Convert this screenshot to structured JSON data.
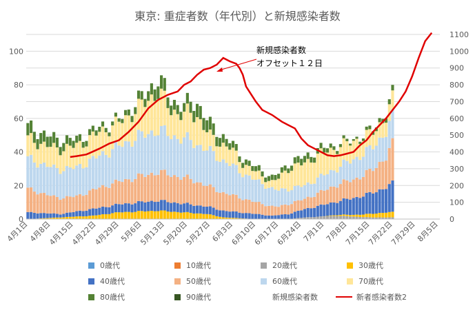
{
  "chart_data": {
    "type": "bar",
    "stacked": true,
    "title": "東京: 重症者数（年代別）と新規感染者数",
    "annotation": "新規感染者数\nオフセット１２日",
    "left_axis": {
      "ylim": [
        0,
        110
      ],
      "ticks": [
        0,
        20,
        40,
        60,
        80,
        100
      ]
    },
    "right_axis": {
      "ylim": [
        0,
        1100
      ],
      "ticks": [
        0,
        100,
        200,
        300,
        400,
        500,
        600,
        700,
        800,
        900,
        1000,
        1100
      ]
    },
    "x_tick_labels": [
      "4月1日",
      "4月8日",
      "4月15日",
      "4月22日",
      "4月29日",
      "5月6日",
      "5月13日",
      "5月20日",
      "5月27日",
      "6月3日",
      "6月10日",
      "6月17日",
      "6月24日",
      "7月1日",
      "7月8日",
      "7月15日",
      "7月22日",
      "7月29日",
      "8月5日"
    ],
    "x_days": 127,
    "bar_days": 113,
    "series": [
      {
        "name": "0歳代",
        "color": "#5b9bd5",
        "values": [
          [
            0,
            0
          ],
          [
            112,
            0
          ]
        ]
      },
      {
        "name": "10歳代",
        "color": "#ed7d31",
        "values": [
          [
            0,
            0
          ],
          [
            112,
            0
          ]
        ]
      },
      {
        "name": "20歳代",
        "color": "#a5a5a5",
        "values": [
          [
            0,
            0
          ],
          [
            80,
            0
          ],
          [
            85,
            1
          ],
          [
            95,
            2
          ],
          [
            105,
            1
          ],
          [
            112,
            1
          ]
        ]
      },
      {
        "name": "30歳代",
        "color": "#ffc000",
        "values": [
          [
            0,
            0
          ],
          [
            20,
            2
          ],
          [
            28,
            4
          ],
          [
            40,
            5
          ],
          [
            55,
            3
          ],
          [
            60,
            1
          ],
          [
            70,
            0
          ],
          [
            90,
            0
          ],
          [
            100,
            1
          ],
          [
            105,
            2
          ],
          [
            110,
            3
          ],
          [
            112,
            3
          ]
        ]
      },
      {
        "name": "40歳代",
        "color": "#4472c4",
        "values": [
          [
            0,
            4
          ],
          [
            10,
            2
          ],
          [
            20,
            4
          ],
          [
            30,
            5
          ],
          [
            40,
            6
          ],
          [
            50,
            5
          ],
          [
            60,
            4
          ],
          [
            70,
            3
          ],
          [
            75,
            2
          ],
          [
            80,
            3
          ],
          [
            88,
            6
          ],
          [
            95,
            8
          ],
          [
            100,
            10
          ],
          [
            105,
            12
          ],
          [
            110,
            15
          ],
          [
            112,
            17
          ]
        ]
      },
      {
        "name": "50歳代",
        "color": "#f4b183",
        "values": [
          [
            0,
            14
          ],
          [
            8,
            10
          ],
          [
            15,
            9
          ],
          [
            22,
            12
          ],
          [
            30,
            14
          ],
          [
            40,
            17
          ],
          [
            50,
            15
          ],
          [
            56,
            12
          ],
          [
            62,
            10
          ],
          [
            70,
            7
          ],
          [
            77,
            5
          ],
          [
            80,
            6
          ],
          [
            85,
            6
          ],
          [
            90,
            8
          ],
          [
            95,
            10
          ],
          [
            100,
            11
          ],
          [
            105,
            13
          ],
          [
            110,
            18
          ],
          [
            112,
            23
          ]
        ]
      },
      {
        "name": "60歳代",
        "color": "#bdd7ee",
        "values": [
          [
            0,
            18
          ],
          [
            8,
            17
          ],
          [
            15,
            17
          ],
          [
            22,
            19
          ],
          [
            28,
            21
          ],
          [
            34,
            24
          ],
          [
            40,
            25
          ],
          [
            46,
            23
          ],
          [
            50,
            23
          ],
          [
            56,
            21
          ],
          [
            62,
            18
          ],
          [
            66,
            15
          ],
          [
            70,
            13
          ],
          [
            76,
            10
          ],
          [
            80,
            9
          ],
          [
            85,
            8
          ],
          [
            90,
            9
          ],
          [
            95,
            10
          ],
          [
            100,
            12
          ],
          [
            105,
            13
          ],
          [
            110,
            15
          ],
          [
            112,
            16
          ]
        ]
      },
      {
        "name": "70歳代",
        "color": "#ffe699",
        "values": [
          [
            0,
            12
          ],
          [
            8,
            12
          ],
          [
            15,
            13
          ],
          [
            22,
            14
          ],
          [
            28,
            14
          ],
          [
            34,
            17
          ],
          [
            40,
            23
          ],
          [
            44,
            15
          ],
          [
            48,
            15
          ],
          [
            52,
            17
          ],
          [
            56,
            9
          ],
          [
            62,
            10
          ],
          [
            66,
            6
          ],
          [
            70,
            5
          ],
          [
            75,
            4
          ],
          [
            80,
            12
          ],
          [
            83,
            13
          ],
          [
            90,
            14
          ],
          [
            95,
            12
          ],
          [
            100,
            11
          ],
          [
            105,
            9
          ],
          [
            110,
            9
          ],
          [
            112,
            10
          ]
        ]
      },
      {
        "name": "80歳代",
        "color": "#548235",
        "values": [
          [
            0,
            7
          ],
          [
            8,
            6
          ],
          [
            15,
            4
          ],
          [
            22,
            3
          ],
          [
            28,
            2
          ],
          [
            32,
            4
          ],
          [
            36,
            5
          ],
          [
            40,
            8
          ],
          [
            44,
            6
          ],
          [
            48,
            5
          ],
          [
            52,
            8
          ],
          [
            56,
            7
          ],
          [
            62,
            4
          ],
          [
            68,
            3
          ],
          [
            74,
            3
          ],
          [
            80,
            3
          ],
          [
            84,
            4
          ],
          [
            90,
            3
          ],
          [
            95,
            2
          ],
          [
            100,
            1
          ],
          [
            105,
            2
          ],
          [
            112,
            3
          ]
        ]
      },
      {
        "name": "90歳代",
        "color": "#375623",
        "values": [
          [
            0,
            0
          ],
          [
            112,
            0
          ]
        ]
      },
      {
        "name": "新規感染者数",
        "color": "none",
        "values": []
      }
    ],
    "line": {
      "name": "新者感染者数2",
      "color": "#e00000",
      "start_day": 13,
      "points": [
        [
          13,
          370
        ],
        [
          15,
          375
        ],
        [
          18,
          385
        ],
        [
          22,
          420
        ],
        [
          25,
          450
        ],
        [
          28,
          470
        ],
        [
          31,
          520
        ],
        [
          34,
          580
        ],
        [
          37,
          660
        ],
        [
          40,
          710
        ],
        [
          43,
          740
        ],
        [
          46,
          760
        ],
        [
          48,
          800
        ],
        [
          50,
          820
        ],
        [
          52,
          860
        ],
        [
          54,
          890
        ],
        [
          56,
          900
        ],
        [
          58,
          920
        ],
        [
          60,
          960
        ],
        [
          62,
          940
        ],
        [
          64,
          925
        ],
        [
          65,
          900
        ],
        [
          66,
          860
        ],
        [
          67,
          790
        ],
        [
          68,
          760
        ],
        [
          70,
          700
        ],
        [
          72,
          650
        ],
        [
          75,
          620
        ],
        [
          78,
          580
        ],
        [
          80,
          560
        ],
        [
          82,
          540
        ],
        [
          84,
          480
        ],
        [
          86,
          440
        ],
        [
          88,
          420
        ],
        [
          90,
          400
        ],
        [
          92,
          380
        ],
        [
          94,
          375
        ],
        [
          96,
          380
        ],
        [
          98,
          390
        ],
        [
          100,
          400
        ],
        [
          102,
          440
        ],
        [
          104,
          470
        ],
        [
          106,
          520
        ],
        [
          108,
          560
        ],
        [
          110,
          600
        ],
        [
          112,
          650
        ],
        [
          114,
          700
        ],
        [
          116,
          760
        ],
        [
          118,
          850
        ],
        [
          120,
          960
        ],
        [
          122,
          1060
        ],
        [
          124,
          1110
        ]
      ]
    }
  }
}
